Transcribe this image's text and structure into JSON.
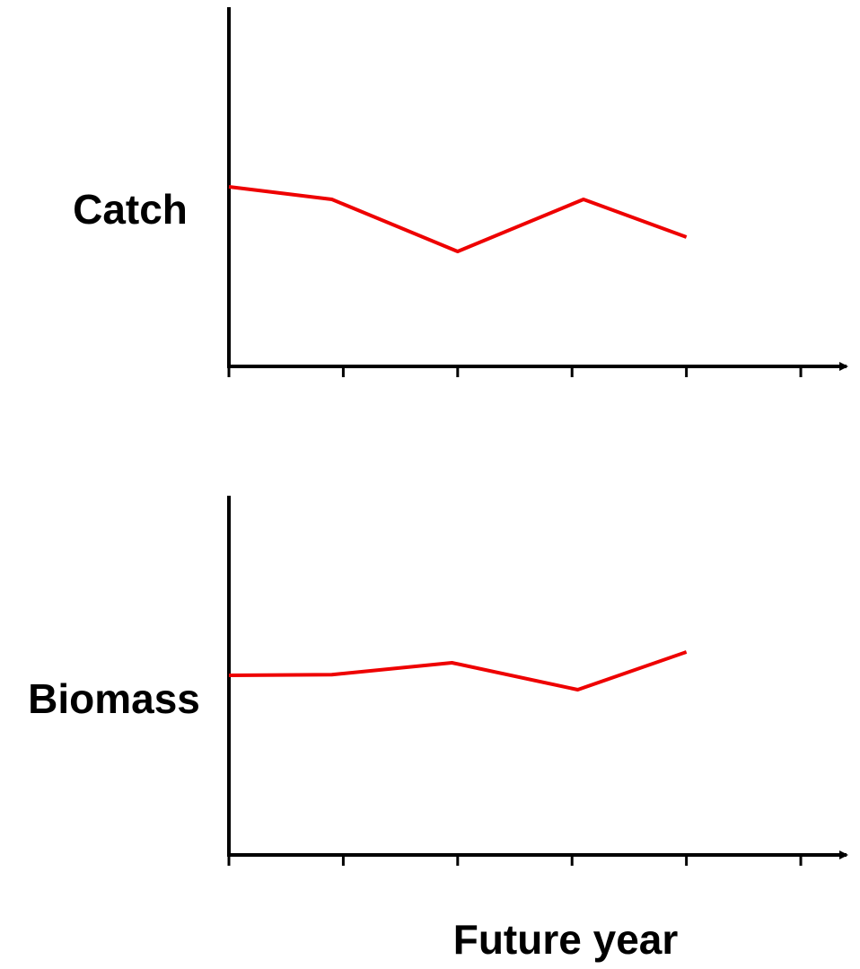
{
  "chart_data": [
    {
      "type": "line",
      "ylabel": "Catch",
      "x": [
        0,
        0.9,
        2,
        3.1,
        4
      ],
      "series": [
        {
          "color": "#ee0000",
          "values": [
            5.0,
            4.65,
            3.2,
            4.65,
            3.6
          ]
        }
      ],
      "xlim": [
        0,
        5.4
      ],
      "xticks": [
        0,
        1,
        2,
        3,
        4,
        5
      ],
      "ylim": [
        0,
        10
      ]
    },
    {
      "type": "line",
      "ylabel": "Biomass",
      "xlabel": "Future year",
      "x": [
        0,
        0.9,
        1.95,
        3.05,
        4
      ],
      "series": [
        {
          "color": "#ee0000",
          "values": [
            5.0,
            5.02,
            5.35,
            4.6,
            5.65
          ]
        }
      ],
      "xlim": [
        0,
        5.4
      ],
      "xticks": [
        0,
        1,
        2,
        3,
        4,
        5
      ],
      "ylim": [
        0,
        10
      ]
    }
  ]
}
